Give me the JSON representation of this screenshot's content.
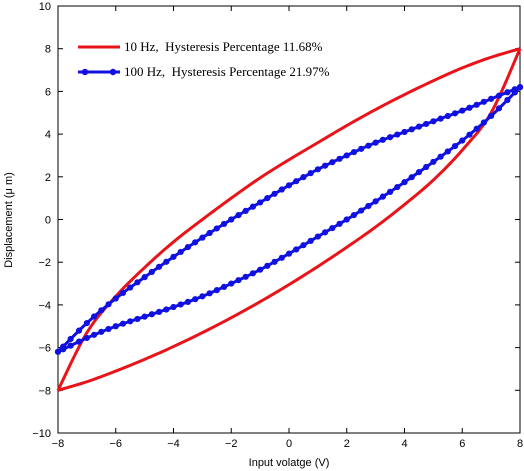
{
  "chart_data": {
    "type": "line",
    "xlabel": "Input volatge (V)",
    "ylabel": "Displacement (μ m)",
    "xlim": [
      -8,
      8
    ],
    "ylim": [
      -10,
      10
    ],
    "xticks": [
      -8,
      -6,
      -4,
      -2,
      0,
      2,
      4,
      6,
      8
    ],
    "yticks": [
      -10,
      -8,
      -6,
      -4,
      -2,
      0,
      2,
      4,
      6,
      8,
      10
    ],
    "tick_labels_x": [
      "−8",
      "−6",
      "−4",
      "−2",
      "0",
      "2",
      "4",
      "6",
      "8"
    ],
    "tick_labels_y": [
      "−10",
      "−8",
      "−6",
      "−4",
      "−2",
      "0",
      "2",
      "4",
      "6",
      "8",
      "10"
    ],
    "grid": false,
    "legend_position": "top-left",
    "series": [
      {
        "name": "10 Hz,  Hysteresis Percentage 11.68%",
        "color": "#e8141a",
        "marker": "none",
        "ascending": {
          "x": [
            -8,
            -7,
            -6,
            -5,
            -4,
            -3,
            -2,
            -1,
            0,
            1,
            2,
            3,
            4,
            5,
            6,
            7,
            8
          ],
          "y": [
            -8.0,
            -7.6,
            -7.1,
            -6.55,
            -5.95,
            -5.3,
            -4.6,
            -3.85,
            -3.05,
            -2.2,
            -1.3,
            -0.35,
            0.7,
            1.85,
            3.25,
            5.0,
            8.0
          ]
        },
        "descending": {
          "x": [
            8,
            7,
            6,
            5,
            4,
            3,
            2,
            1,
            0,
            -1,
            -2,
            -3,
            -4,
            -5,
            -6,
            -7,
            -8
          ],
          "y": [
            8.0,
            7.6,
            7.1,
            6.5,
            5.85,
            5.15,
            4.4,
            3.6,
            2.8,
            1.95,
            1.0,
            0.0,
            -1.05,
            -2.25,
            -3.6,
            -5.3,
            -8.0
          ]
        }
      },
      {
        "name": "100 Hz,  Hysteresis Percentage 21.97%",
        "color": "#1010e0",
        "marker": "circle",
        "ascending": {
          "x": [
            -8,
            -7,
            -6,
            -5,
            -4,
            -3,
            -2,
            -1,
            0,
            1,
            2,
            3,
            4,
            5,
            6,
            7,
            8
          ],
          "y": [
            -6.2,
            -5.55,
            -5.0,
            -4.55,
            -4.1,
            -3.6,
            -3.0,
            -2.35,
            -1.6,
            -0.8,
            0.0,
            0.85,
            1.75,
            2.7,
            3.7,
            4.85,
            6.2
          ]
        },
        "descending": {
          "x": [
            8,
            7,
            6,
            5,
            4,
            3,
            2,
            1,
            0,
            -1,
            -2,
            -3,
            -4,
            -5,
            -6,
            -7,
            -8
          ],
          "y": [
            6.2,
            5.65,
            5.1,
            4.6,
            4.1,
            3.6,
            3.0,
            2.35,
            1.6,
            0.8,
            0.0,
            -0.85,
            -1.75,
            -2.7,
            -3.7,
            -4.85,
            -6.2
          ]
        }
      }
    ]
  }
}
